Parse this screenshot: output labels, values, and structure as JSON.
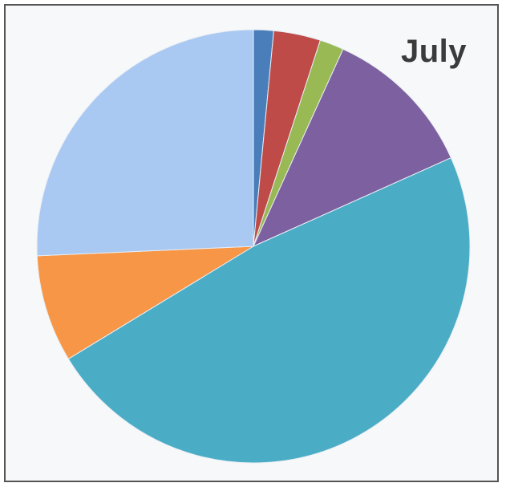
{
  "chart_data": {
    "type": "pie",
    "title": "July",
    "start": "12 o'clock",
    "direction": "clockwise",
    "legend": "none",
    "slices": [
      {
        "value": 1.5,
        "color": "#4a7ebb"
      },
      {
        "value": 3.5,
        "color": "#be4b48"
      },
      {
        "value": 1.8,
        "color": "#98b954"
      },
      {
        "value": 11.5,
        "color": "#7d60a0"
      },
      {
        "value": 48.0,
        "color": "#4bacc6"
      },
      {
        "value": 8.0,
        "color": "#f79646"
      },
      {
        "value": 25.7,
        "color": "#a9c8f2"
      }
    ]
  }
}
